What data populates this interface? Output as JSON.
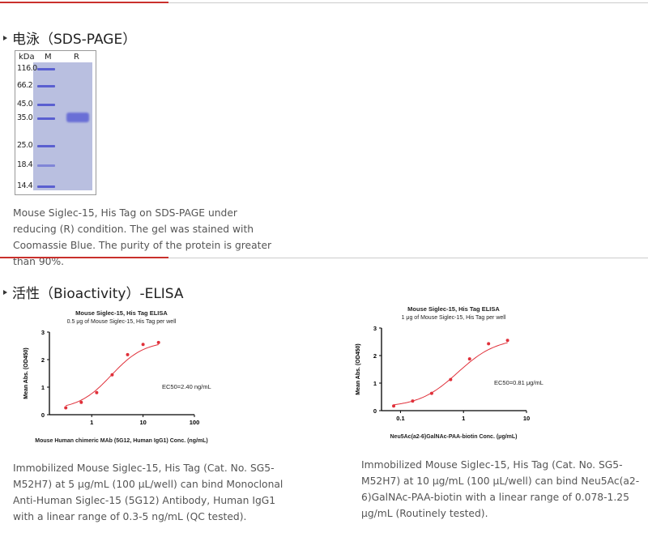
{
  "sds": {
    "title": "电泳（SDS-PAGE）",
    "gel": {
      "unit_label": "kDa",
      "lanes": [
        "M",
        "R"
      ],
      "markers": [
        "116.0",
        "66.2",
        "45.0",
        "35.0",
        "25.0",
        "18.4",
        "14.4"
      ]
    },
    "caption": "Mouse Siglec-15, His Tag on SDS-PAGE under reducing (R) condition. The gel was stained with Coomassie Blue. The purity of the protein is greater than 90%."
  },
  "elisa": {
    "title": "活性（Bioactivity）-ELISA",
    "captions": [
      "Immobilized Mouse Siglec-15, His Tag (Cat. No. SG5-M52H7) at 5 μg/mL (100 μL/well) can bind Monoclonal Anti-Human Siglec-15 (5G12) Antibody, Human IgG1 with a linear range of 0.3-5 ng/mL (QC tested).",
      "Immobilized Mouse Siglec-15, His Tag (Cat. No. SG5-M52H7) at 10 μg/mL (100 μL/well) can bind Neu5Ac(a2-6)GalNAc-PAA-biotin with a linear range of 0.078-1.25 μg/mL (Routinely tested)."
    ]
  },
  "chart_data": [
    {
      "type": "scatter",
      "title": "Mouse Siglec-15, His Tag ELISA",
      "subtitle": "0.5 μg of Mouse Siglec-15, His Tag per well",
      "xlabel": "Mouse Human chimeric MAb (5G12, Human IgG1) Conc. (ng/mL)",
      "ylabel": "Mean Abs. (OD450)",
      "xscale": "log",
      "xlim": [
        0.15,
        100
      ],
      "ylim": [
        0,
        3
      ],
      "xticks": [
        "1",
        "10",
        "100"
      ],
      "yticks": [
        "0",
        "1",
        "2",
        "3"
      ],
      "x": [
        0.3125,
        0.625,
        1.25,
        2.5,
        5,
        10,
        20
      ],
      "y": [
        0.25,
        0.45,
        0.8,
        1.45,
        2.18,
        2.55,
        2.62
      ],
      "annotation": "EC50=2.40 ng/mL",
      "ec50": 2.4,
      "color": "#e0303a",
      "grid": false
    },
    {
      "type": "scatter",
      "title": "Mouse Siglec-15, His Tag ELISA",
      "subtitle": "1 μg of Mouse Siglec-15, His Tag per well",
      "xlabel": "Neu5Ac(a2-6)GalNAc-PAA-biotin Conc. (μg/mL)",
      "ylabel": "Mean Abs. (OD450)",
      "xscale": "log",
      "xlim": [
        0.05,
        10
      ],
      "ylim": [
        0,
        3
      ],
      "xticks": [
        "0.1",
        "1",
        "10"
      ],
      "yticks": [
        "0",
        "1",
        "2",
        "3"
      ],
      "x": [
        0.078,
        0.156,
        0.3125,
        0.625,
        1.25,
        2.5,
        5
      ],
      "y": [
        0.17,
        0.35,
        0.63,
        1.13,
        1.88,
        2.43,
        2.55
      ],
      "annotation": "EC50=0.81 μg/mL",
      "ec50": 0.81,
      "color": "#e0303a",
      "grid": false
    }
  ]
}
